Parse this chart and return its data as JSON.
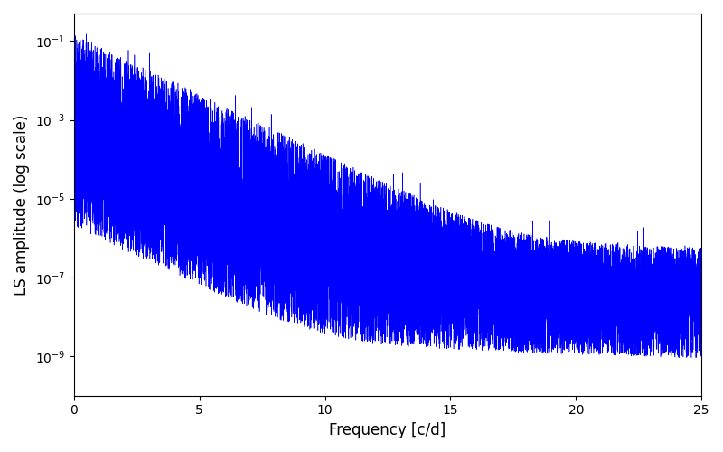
{
  "xlabel": "Frequency [c/d]",
  "ylabel": "LS amplitude (log scale)",
  "line_color": "#0000ff",
  "xlim": [
    0,
    25
  ],
  "ylim": [
    1e-10,
    0.5
  ],
  "xmin": 0.0,
  "xmax": 25.0,
  "n_points": 15000,
  "seed": 42,
  "figsize": [
    8.0,
    5.0
  ],
  "dpi": 100,
  "bg_color": "#ffffff"
}
